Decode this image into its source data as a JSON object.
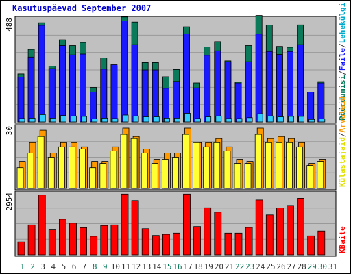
{
  "chart_data": {
    "type": "bar",
    "title": "Kasutuspäevad September 2007",
    "categories": [
      "1",
      "2",
      "3",
      "4",
      "5",
      "6",
      "7",
      "8",
      "9",
      "10",
      "11",
      "12",
      "13",
      "14",
      "15",
      "16",
      "17",
      "18",
      "19",
      "20",
      "21",
      "22",
      "23",
      "24",
      "25",
      "26",
      "27",
      "28",
      "29",
      "30",
      "31"
    ],
    "weekend_days": [
      "1",
      "2",
      "8",
      "9",
      "15",
      "16",
      "22",
      "23",
      "29",
      "30"
    ],
    "colors": {
      "title": "#0000cc",
      "plot_background": "#c0c0c0",
      "grid": "#999999",
      "hits": "#0b7a5a",
      "files": "#1a1aff",
      "pages": "#33ccff",
      "visits": "#ff9900",
      "sites": "#ffff33",
      "kbytes": "#ff0000",
      "weekday_label": "#333333",
      "weekend_label": "#007755",
      "label_visits": "#ff9900",
      "label_sites": "#e0e000",
      "label_files": "#1a1aff",
      "label_pages": "#00aacc",
      "label_hits": "#007755",
      "label_kbytes": "#ff0000"
    },
    "panels": [
      {
        "id": "hits-files-pages",
        "ymax_label": "488",
        "ymax": 488,
        "legend": [
          {
            "text": "Pöördumisi",
            "color_key": "label_hits"
          },
          {
            "text": "/",
            "color_key": "weekday_label"
          },
          {
            "text": "Faile",
            "color_key": "label_files"
          },
          {
            "text": "/",
            "color_key": "weekday_label"
          },
          {
            "text": "Lehekülgi",
            "color_key": "label_pages"
          }
        ],
        "series": [
          {
            "name": "Pöördumisi",
            "color_key": "hits",
            "values": [
              225,
              340,
              465,
              262,
              385,
              358,
              372,
              162,
              300,
              262,
              492,
              468,
              278,
              278,
              212,
              246,
              446,
              183,
              352,
              376,
              286,
              188,
              358,
              499,
              454,
              354,
              350,
              455,
              140,
              189,
              0
            ]
          },
          {
            "name": "Faile",
            "color_key": "files",
            "values": [
              210,
              304,
              453,
              250,
              358,
              314,
              318,
              140,
              248,
              268,
              474,
              362,
              244,
              244,
              158,
              190,
              413,
              160,
              312,
              333,
              282,
              183,
              282,
              412,
              330,
              316,
              330,
              362,
              140,
              183,
              0
            ]
          },
          {
            "name": "Lehekülgi",
            "color_key": "pages",
            "values": [
              16,
              18,
              34,
              18,
              30,
              28,
              26,
              14,
              18,
              16,
              32,
              28,
              24,
              24,
              18,
              18,
              40,
              16,
              24,
              28,
              16,
              16,
              20,
              38,
              28,
              24,
              26,
              26,
              12,
              14,
              0
            ]
          }
        ]
      },
      {
        "id": "visits-sites",
        "ymax_label": "30",
        "ymax": 30,
        "legend": [
          {
            "text": "Külastajaid",
            "color_key": "label_sites"
          },
          {
            "text": "/",
            "color_key": "weekday_label"
          },
          {
            "text": "Arvuteid",
            "color_key": "label_visits"
          }
        ],
        "series": [
          {
            "name": "Arvuteid",
            "color_key": "visits",
            "values": [
              13,
              22,
              28,
              17,
              22,
              22,
              20,
              13,
              13,
              20,
              29,
              25,
              19,
              14,
              17,
              17,
              29,
              22,
              22,
              24,
              20,
              14,
              13,
              29,
              24,
              25,
              24,
              22,
              12,
              14,
              0
            ]
          },
          {
            "name": "Külastajaid",
            "color_key": "sites",
            "values": [
              10,
              17,
              25,
              15,
              20,
              20,
              19,
              10,
              12,
              18,
              26,
              24,
              17,
              12,
              14,
              15,
              26,
              22,
              20,
              22,
              18,
              12,
              12,
              26,
              22,
              22,
              22,
              20,
              11,
              13,
              0
            ]
          }
        ]
      },
      {
        "id": "kbytes",
        "ymax_label": "2954",
        "ymax": 2954,
        "legend": [
          {
            "text": "KBaite",
            "color_key": "label_kbytes"
          }
        ],
        "series": [
          {
            "name": "KBaite",
            "color_key": "kbytes",
            "values": [
              610,
              1420,
              2834,
              1180,
              1690,
              1500,
              1290,
              880,
              1390,
              1420,
              2880,
              2570,
              1240,
              920,
              970,
              1030,
              2880,
              1340,
              2230,
              2020,
              1030,
              1030,
              1300,
              2600,
              1890,
              2220,
              2340,
              2680,
              900,
              1130,
              0
            ]
          }
        ]
      }
    ]
  }
}
